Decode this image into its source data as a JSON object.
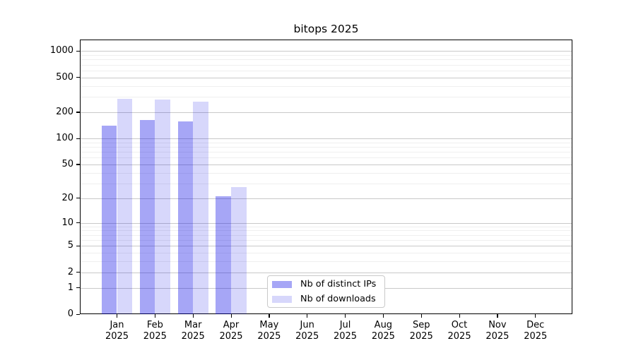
{
  "chart_data": {
    "type": "bar",
    "title": "bitops 2025",
    "categories": [
      "Jan",
      "Feb",
      "Mar",
      "Apr",
      "May",
      "Jun",
      "Jul",
      "Aug",
      "Sep",
      "Oct",
      "Nov",
      "Dec"
    ],
    "year_label": "2025",
    "series": [
      {
        "name": "Nb of distinct IPs",
        "color": "rgba(0,0,230,0.35)",
        "values": [
          140,
          163,
          156,
          21,
          0,
          0,
          0,
          0,
          0,
          0,
          0,
          0
        ]
      },
      {
        "name": "Nb of downloads",
        "color": "rgba(0,0,230,0.155)",
        "values": [
          285,
          278,
          265,
          27,
          0,
          0,
          0,
          0,
          0,
          0,
          0,
          0
        ]
      }
    ],
    "y_axis": {
      "scale": "log1p",
      "ticks": [
        0,
        1,
        2,
        5,
        10,
        20,
        50,
        100,
        200,
        500,
        1000
      ],
      "minor_ticks": [
        3,
        4,
        6,
        7,
        8,
        9,
        30,
        40,
        60,
        70,
        80,
        90,
        300,
        400,
        600,
        700,
        800,
        900
      ],
      "ylim": [
        0,
        1350
      ]
    },
    "x_axis": {
      "tick_label_lines": 2
    },
    "grid": {
      "major_color": "#c9c9c9",
      "minor_color": "#efefef",
      "vertical": false
    },
    "legend": {
      "position": "lower-center",
      "border_color": "#c9c9c9"
    },
    "axis_color": "#000000",
    "text_color": "#000000"
  }
}
